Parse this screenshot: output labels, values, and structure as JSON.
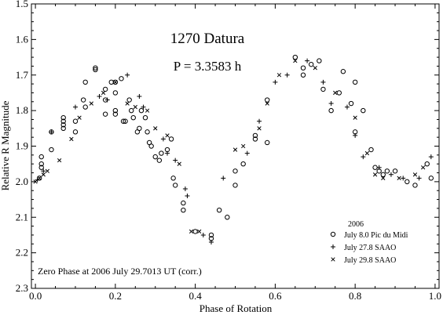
{
  "chart_data": {
    "type": "scatter",
    "title": "1270 Datura",
    "subtitle": "P = 3.3583 h",
    "xlabel": "Phase of Rotation",
    "ylabel": "Relative R Magnitude",
    "xlim": [
      -0.01,
      1.01
    ],
    "ylim": [
      2.3,
      1.5
    ],
    "y_inverted": true,
    "x_ticks": [
      {
        "value": 0.0,
        "label": "0.0"
      },
      {
        "value": 0.2,
        "label": "0.2"
      },
      {
        "value": 0.4,
        "label": "0.4"
      },
      {
        "value": 0.6,
        "label": "0.6"
      },
      {
        "value": 0.8,
        "label": "0.8"
      },
      {
        "value": 1.0,
        "label": "1.0"
      }
    ],
    "y_ticks": [
      {
        "value": 1.5,
        "label": "1.5"
      },
      {
        "value": 1.6,
        "label": "1.6"
      },
      {
        "value": 1.7,
        "label": "1.7"
      },
      {
        "value": 1.8,
        "label": "1.8"
      },
      {
        "value": 1.9,
        "label": "1.9"
      },
      {
        "value": 2.0,
        "label": "2.0"
      },
      {
        "value": 2.1,
        "label": "2.1"
      },
      {
        "value": 2.2,
        "label": "2.2"
      },
      {
        "value": 2.3,
        "label": "2.3"
      }
    ],
    "grid": false,
    "legend": {
      "title": "2006",
      "placement": "bottom-right"
    },
    "annotation": "Zero Phase at 2006 July 29.7013 UT (corr.)",
    "series": [
      {
        "name": "July 8.0 Pic du Midi",
        "marker": "circle",
        "points": [
          [
            0.01,
            1.99
          ],
          [
            0.015,
            1.96
          ],
          [
            0.015,
            1.95
          ],
          [
            0.015,
            1.93
          ],
          [
            0.04,
            1.91
          ],
          [
            0.04,
            1.86
          ],
          [
            0.07,
            1.82
          ],
          [
            0.07,
            1.83
          ],
          [
            0.07,
            1.84
          ],
          [
            0.07,
            1.85
          ],
          [
            0.1,
            1.83
          ],
          [
            0.1,
            1.86
          ],
          [
            0.12,
            1.77
          ],
          [
            0.125,
            1.79
          ],
          [
            0.125,
            1.72
          ],
          [
            0.15,
            1.68
          ],
          [
            0.15,
            1.685
          ],
          [
            0.175,
            1.74
          ],
          [
            0.175,
            1.77
          ],
          [
            0.175,
            1.81
          ],
          [
            0.19,
            1.72
          ],
          [
            0.2,
            1.75
          ],
          [
            0.2,
            1.72
          ],
          [
            0.2,
            1.81
          ],
          [
            0.2,
            1.8
          ],
          [
            0.215,
            1.71
          ],
          [
            0.22,
            1.83
          ],
          [
            0.225,
            1.83
          ],
          [
            0.235,
            1.77
          ],
          [
            0.24,
            1.8
          ],
          [
            0.245,
            1.82
          ],
          [
            0.255,
            1.86
          ],
          [
            0.26,
            1.85
          ],
          [
            0.265,
            1.8
          ],
          [
            0.275,
            1.82
          ],
          [
            0.28,
            1.86
          ],
          [
            0.285,
            1.89
          ],
          [
            0.29,
            1.9
          ],
          [
            0.3,
            1.93
          ],
          [
            0.31,
            1.94
          ],
          [
            0.315,
            1.92
          ],
          [
            0.33,
            1.91
          ],
          [
            0.34,
            1.88
          ],
          [
            0.345,
            1.99
          ],
          [
            0.35,
            2.01
          ],
          [
            0.37,
            2.06
          ],
          [
            0.37,
            2.08
          ],
          [
            0.4,
            2.14
          ],
          [
            0.44,
            2.16
          ],
          [
            0.44,
            2.15
          ],
          [
            0.46,
            2.08
          ],
          [
            0.48,
            2.1
          ],
          [
            0.5,
            2.01
          ],
          [
            0.5,
            1.97
          ],
          [
            0.52,
            1.95
          ],
          [
            0.55,
            1.87
          ],
          [
            0.55,
            1.88
          ],
          [
            0.58,
            1.77
          ],
          [
            0.58,
            1.89
          ],
          [
            0.65,
            1.65
          ],
          [
            0.67,
            1.68
          ],
          [
            0.67,
            1.7
          ],
          [
            0.69,
            1.67
          ],
          [
            0.71,
            1.66
          ],
          [
            0.72,
            1.74
          ],
          [
            0.74,
            1.8
          ],
          [
            0.76,
            1.75
          ],
          [
            0.77,
            1.69
          ],
          [
            0.79,
            1.78
          ],
          [
            0.8,
            1.86
          ],
          [
            0.8,
            1.72
          ],
          [
            0.84,
            1.91
          ],
          [
            0.85,
            1.96
          ],
          [
            0.86,
            1.97
          ],
          [
            0.87,
            1.98
          ],
          [
            0.88,
            1.97
          ],
          [
            0.9,
            1.97
          ],
          [
            0.93,
            2.0
          ],
          [
            0.95,
            2.01
          ],
          [
            0.98,
            1.95
          ],
          [
            0.99,
            1.99
          ],
          [
            0.82,
            1.8
          ]
        ]
      },
      {
        "name": "July 27.8 SAAO",
        "marker": "plus",
        "points": [
          [
            0.005,
            1.995
          ],
          [
            0.02,
            1.97
          ],
          [
            0.04,
            1.86
          ],
          [
            0.1,
            1.79
          ],
          [
            0.16,
            1.76
          ],
          [
            0.18,
            1.77
          ],
          [
            0.23,
            1.7
          ],
          [
            0.26,
            1.76
          ],
          [
            0.27,
            1.79
          ],
          [
            0.32,
            1.88
          ],
          [
            0.33,
            1.92
          ],
          [
            0.35,
            1.94
          ],
          [
            0.375,
            2.02
          ],
          [
            0.38,
            2.04
          ],
          [
            0.42,
            2.15
          ],
          [
            0.44,
            2.17
          ],
          [
            0.47,
            1.99
          ],
          [
            0.53,
            1.92
          ],
          [
            0.56,
            1.83
          ],
          [
            0.6,
            1.72
          ],
          [
            0.63,
            1.7
          ],
          [
            0.68,
            1.66
          ],
          [
            0.72,
            1.72
          ],
          [
            0.74,
            1.78
          ],
          [
            0.78,
            1.79
          ],
          [
            0.8,
            1.87
          ],
          [
            0.82,
            1.93
          ],
          [
            0.86,
            1.96
          ],
          [
            0.89,
            1.98
          ],
          [
            0.92,
            1.99
          ],
          [
            0.96,
            1.99
          ],
          [
            0.99,
            1.93
          ]
        ]
      },
      {
        "name": "July 29.8 SAAO",
        "marker": "x",
        "points": [
          [
            0.0,
            2.0
          ],
          [
            0.01,
            1.99
          ],
          [
            0.02,
            1.98
          ],
          [
            0.03,
            1.97
          ],
          [
            0.06,
            1.94
          ],
          [
            0.09,
            1.88
          ],
          [
            0.11,
            1.82
          ],
          [
            0.14,
            1.78
          ],
          [
            0.17,
            1.75
          ],
          [
            0.2,
            1.72
          ],
          [
            0.23,
            1.78
          ],
          [
            0.25,
            1.79
          ],
          [
            0.28,
            1.8
          ],
          [
            0.3,
            1.85
          ],
          [
            0.33,
            1.87
          ],
          [
            0.36,
            1.95
          ],
          [
            0.39,
            2.14
          ],
          [
            0.41,
            2.14
          ],
          [
            0.5,
            1.91
          ],
          [
            0.52,
            1.9
          ],
          [
            0.56,
            1.85
          ],
          [
            0.58,
            1.78
          ],
          [
            0.61,
            1.7
          ],
          [
            0.65,
            1.66
          ],
          [
            0.7,
            1.68
          ],
          [
            0.75,
            1.75
          ],
          [
            0.8,
            1.82
          ],
          [
            0.83,
            1.92
          ],
          [
            0.85,
            1.98
          ],
          [
            0.87,
            1.99
          ],
          [
            0.91,
            1.99
          ],
          [
            0.95,
            1.98
          ],
          [
            0.97,
            1.96
          ]
        ]
      }
    ]
  }
}
